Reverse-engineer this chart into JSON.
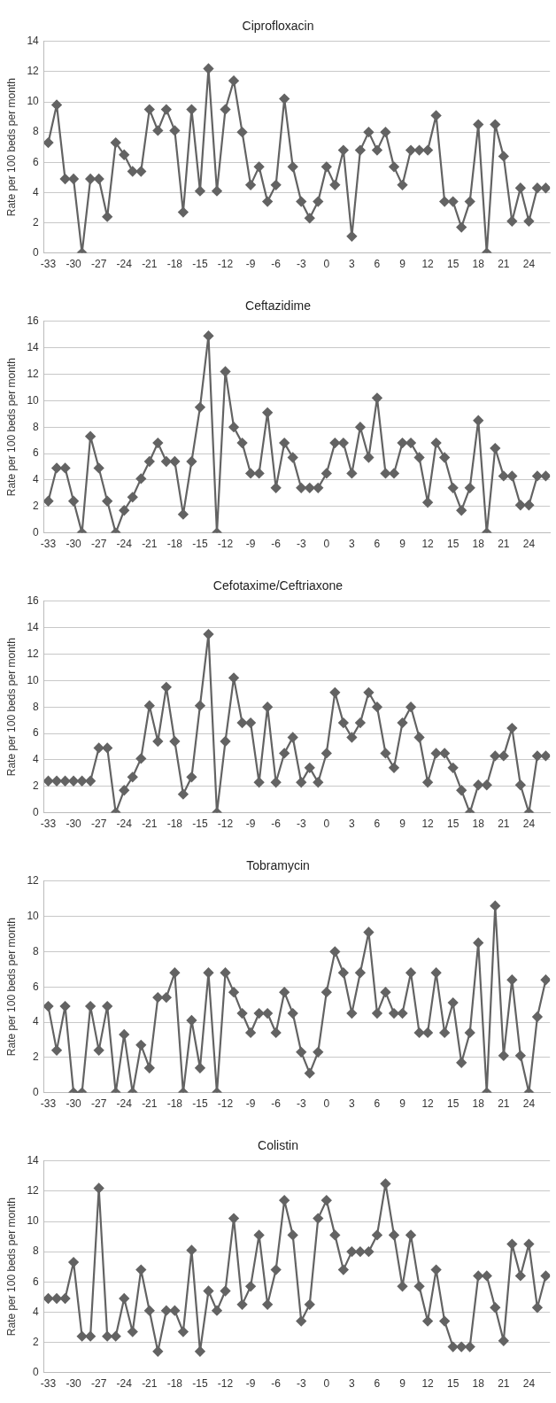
{
  "chart_data": [
    {
      "type": "line",
      "title": "Ciprofloxacin",
      "ylabel": "Rate per 100 beds per month",
      "grid": "y",
      "marker": "diamond",
      "ylim": [
        0,
        14
      ],
      "yticks": [
        0,
        2,
        4,
        6,
        8,
        10,
        12,
        14
      ],
      "xlim": [
        -33.5,
        26.5
      ],
      "xticks": [
        -33,
        -30,
        -27,
        -24,
        -21,
        -18,
        -15,
        -12,
        -9,
        -6,
        -3,
        0,
        3,
        6,
        9,
        12,
        15,
        18,
        21,
        24
      ],
      "x": [
        -33,
        -32,
        -31,
        -30,
        -29,
        -28,
        -27,
        -26,
        -25,
        -24,
        -23,
        -22,
        -21,
        -20,
        -19,
        -18,
        -17,
        -16,
        -15,
        -14,
        -13,
        -12,
        -11,
        -10,
        -9,
        -8,
        -7,
        -6,
        -5,
        -4,
        -3,
        -2,
        -1,
        0,
        1,
        2,
        3,
        4,
        5,
        6,
        7,
        8,
        9,
        10,
        11,
        12,
        13,
        14,
        15,
        16,
        17,
        18,
        19,
        20,
        21,
        22,
        23,
        24,
        25,
        26
      ],
      "series": [
        {
          "color": "#636363",
          "values": [
            7.3,
            9.8,
            4.9,
            4.9,
            0,
            4.9,
            4.9,
            2.4,
            7.3,
            6.5,
            5.4,
            5.4,
            9.5,
            8.1,
            9.5,
            8.1,
            2.7,
            9.5,
            4.1,
            12.2,
            4.1,
            9.5,
            11.4,
            8.0,
            4.5,
            5.7,
            3.4,
            4.5,
            10.2,
            5.7,
            3.4,
            2.3,
            3.4,
            5.7,
            4.5,
            6.8,
            1.1,
            6.8,
            8.0,
            6.8,
            8.0,
            5.7,
            4.5,
            6.8,
            6.8,
            6.8,
            9.1,
            3.4,
            3.4,
            1.7,
            3.4,
            8.5,
            0,
            8.5,
            6.4,
            2.1,
            4.3,
            2.1,
            4.3,
            4.3
          ]
        }
      ]
    },
    {
      "type": "line",
      "title": "Ceftazidime",
      "ylabel": "Rate per 100 beds per month",
      "grid": "y",
      "marker": "diamond",
      "ylim": [
        0,
        16
      ],
      "yticks": [
        0,
        2,
        4,
        6,
        8,
        10,
        12,
        14,
        16
      ],
      "xlim": [
        -33.5,
        26.5
      ],
      "xticks": [
        -33,
        -30,
        -27,
        -24,
        -21,
        -18,
        -15,
        -12,
        -9,
        -6,
        -3,
        0,
        3,
        6,
        9,
        12,
        15,
        18,
        21,
        24
      ],
      "x": [
        -33,
        -32,
        -31,
        -30,
        -29,
        -28,
        -27,
        -26,
        -25,
        -24,
        -23,
        -22,
        -21,
        -20,
        -19,
        -18,
        -17,
        -16,
        -15,
        -14,
        -13,
        -12,
        -11,
        -10,
        -9,
        -8,
        -7,
        -6,
        -5,
        -4,
        -3,
        -2,
        -1,
        0,
        1,
        2,
        3,
        4,
        5,
        6,
        7,
        8,
        9,
        10,
        11,
        12,
        13,
        14,
        15,
        16,
        17,
        18,
        19,
        20,
        21,
        22,
        23,
        24,
        25,
        26
      ],
      "series": [
        {
          "color": "#636363",
          "values": [
            2.4,
            4.9,
            4.9,
            2.4,
            0,
            7.3,
            4.9,
            2.4,
            0,
            1.7,
            2.7,
            4.1,
            5.4,
            6.8,
            5.4,
            5.4,
            1.4,
            5.4,
            9.5,
            14.9,
            0,
            12.2,
            8.0,
            6.8,
            4.5,
            4.5,
            9.1,
            3.4,
            6.8,
            5.7,
            3.4,
            3.4,
            3.4,
            4.5,
            6.8,
            6.8,
            4.5,
            8.0,
            5.7,
            10.2,
            4.5,
            4.5,
            6.8,
            6.8,
            5.7,
            2.3,
            6.8,
            5.7,
            3.4,
            1.7,
            3.4,
            8.5,
            0,
            6.4,
            4.3,
            4.3,
            2.1,
            2.1,
            4.3,
            4.3
          ]
        }
      ]
    },
    {
      "type": "line",
      "title": "Cefotaxime/Ceftriaxone",
      "ylabel": "Rate per 100 beds per month",
      "grid": "y",
      "marker": "diamond",
      "ylim": [
        0,
        16
      ],
      "yticks": [
        0,
        2,
        4,
        6,
        8,
        10,
        12,
        14,
        16
      ],
      "xlim": [
        -33.5,
        26.5
      ],
      "xticks": [
        -33,
        -30,
        -27,
        -24,
        -21,
        -18,
        -15,
        -12,
        -9,
        -6,
        -3,
        0,
        3,
        6,
        9,
        12,
        15,
        18,
        21,
        24
      ],
      "x": [
        -33,
        -32,
        -31,
        -30,
        -29,
        -28,
        -27,
        -26,
        -25,
        -24,
        -23,
        -22,
        -21,
        -20,
        -19,
        -18,
        -17,
        -16,
        -15,
        -14,
        -13,
        -12,
        -11,
        -10,
        -9,
        -8,
        -7,
        -6,
        -5,
        -4,
        -3,
        -2,
        -1,
        0,
        1,
        2,
        3,
        4,
        5,
        6,
        7,
        8,
        9,
        10,
        11,
        12,
        13,
        14,
        15,
        16,
        17,
        18,
        19,
        20,
        21,
        22,
        23,
        24,
        25,
        26
      ],
      "series": [
        {
          "color": "#636363",
          "values": [
            2.4,
            2.4,
            2.4,
            2.4,
            2.4,
            2.4,
            4.9,
            4.9,
            0,
            1.7,
            2.7,
            4.1,
            8.1,
            5.4,
            9.5,
            5.4,
            1.4,
            2.7,
            8.1,
            13.5,
            0,
            5.4,
            10.2,
            6.8,
            6.8,
            2.3,
            8.0,
            2.3,
            4.5,
            5.7,
            2.3,
            3.4,
            2.3,
            4.5,
            9.1,
            6.8,
            5.7,
            6.8,
            9.1,
            8.0,
            4.5,
            3.4,
            6.8,
            8.0,
            5.7,
            2.3,
            4.5,
            4.5,
            3.4,
            1.7,
            0,
            2.1,
            2.1,
            4.3,
            4.3,
            6.4,
            2.1,
            0,
            4.3,
            4.3
          ]
        }
      ]
    },
    {
      "type": "line",
      "title": "Tobramycin",
      "ylabel": "Rate per 100 beds per month",
      "grid": "y",
      "marker": "diamond",
      "ylim": [
        0,
        12
      ],
      "yticks": [
        0,
        2,
        4,
        6,
        8,
        10,
        12
      ],
      "xlim": [
        -33.5,
        26.5
      ],
      "xticks": [
        -33,
        -30,
        -27,
        -24,
        -21,
        -18,
        -15,
        -12,
        -9,
        -6,
        -3,
        0,
        3,
        6,
        9,
        12,
        15,
        18,
        21,
        24
      ],
      "x": [
        -33,
        -32,
        -31,
        -30,
        -29,
        -28,
        -27,
        -26,
        -25,
        -24,
        -23,
        -22,
        -21,
        -20,
        -19,
        -18,
        -17,
        -16,
        -15,
        -14,
        -13,
        -12,
        -11,
        -10,
        -9,
        -8,
        -7,
        -6,
        -5,
        -4,
        -3,
        -2,
        -1,
        0,
        1,
        2,
        3,
        4,
        5,
        6,
        7,
        8,
        9,
        10,
        11,
        12,
        13,
        14,
        15,
        16,
        17,
        18,
        19,
        20,
        21,
        22,
        23,
        24,
        25,
        26
      ],
      "series": [
        {
          "color": "#636363",
          "values": [
            4.9,
            2.4,
            4.9,
            0,
            0,
            4.9,
            2.4,
            4.9,
            0,
            3.3,
            0,
            2.7,
            1.4,
            5.4,
            5.4,
            6.8,
            0,
            4.1,
            1.4,
            6.8,
            0,
            6.8,
            5.7,
            4.5,
            3.4,
            4.5,
            4.5,
            3.4,
            5.7,
            4.5,
            2.3,
            1.1,
            2.3,
            5.7,
            8.0,
            6.8,
            4.5,
            6.8,
            9.1,
            4.5,
            5.7,
            4.5,
            4.5,
            6.8,
            3.4,
            3.4,
            6.8,
            3.4,
            5.1,
            1.7,
            3.4,
            8.5,
            0,
            10.6,
            2.1,
            6.4,
            2.1,
            0,
            4.3,
            6.4
          ]
        }
      ]
    },
    {
      "type": "line",
      "title": "Colistin",
      "ylabel": "Rate per 100 beds per month",
      "grid": "y",
      "marker": "diamond",
      "ylim": [
        0,
        14
      ],
      "yticks": [
        0,
        2,
        4,
        6,
        8,
        10,
        12,
        14
      ],
      "xlim": [
        -33.5,
        26.5
      ],
      "xticks": [
        -33,
        -30,
        -27,
        -24,
        -21,
        -18,
        -15,
        -12,
        -9,
        -6,
        -3,
        0,
        3,
        6,
        9,
        12,
        15,
        18,
        21,
        24
      ],
      "x": [
        -33,
        -32,
        -31,
        -30,
        -29,
        -28,
        -27,
        -26,
        -25,
        -24,
        -23,
        -22,
        -21,
        -20,
        -19,
        -18,
        -17,
        -16,
        -15,
        -14,
        -13,
        -12,
        -11,
        -10,
        -9,
        -8,
        -7,
        -6,
        -5,
        -4,
        -3,
        -2,
        -1,
        0,
        1,
        2,
        3,
        4,
        5,
        6,
        7,
        8,
        9,
        10,
        11,
        12,
        13,
        14,
        15,
        16,
        17,
        18,
        19,
        20,
        21,
        22,
        23,
        24,
        25,
        26
      ],
      "series": [
        {
          "color": "#636363",
          "values": [
            4.9,
            4.9,
            4.9,
            7.3,
            2.4,
            2.4,
            12.2,
            2.4,
            2.4,
            4.9,
            2.7,
            6.8,
            4.1,
            1.4,
            4.1,
            4.1,
            2.7,
            8.1,
            1.4,
            5.4,
            4.1,
            5.4,
            10.2,
            4.5,
            5.7,
            9.1,
            4.5,
            6.8,
            11.4,
            9.1,
            3.4,
            4.5,
            10.2,
            11.4,
            9.1,
            6.8,
            8.0,
            8.0,
            8.0,
            9.1,
            12.5,
            9.1,
            5.7,
            9.1,
            5.7,
            3.4,
            6.8,
            3.4,
            1.7,
            1.7,
            1.7,
            6.4,
            6.4,
            4.3,
            2.1,
            8.5,
            6.4,
            8.5,
            4.3,
            6.4
          ]
        }
      ]
    }
  ]
}
